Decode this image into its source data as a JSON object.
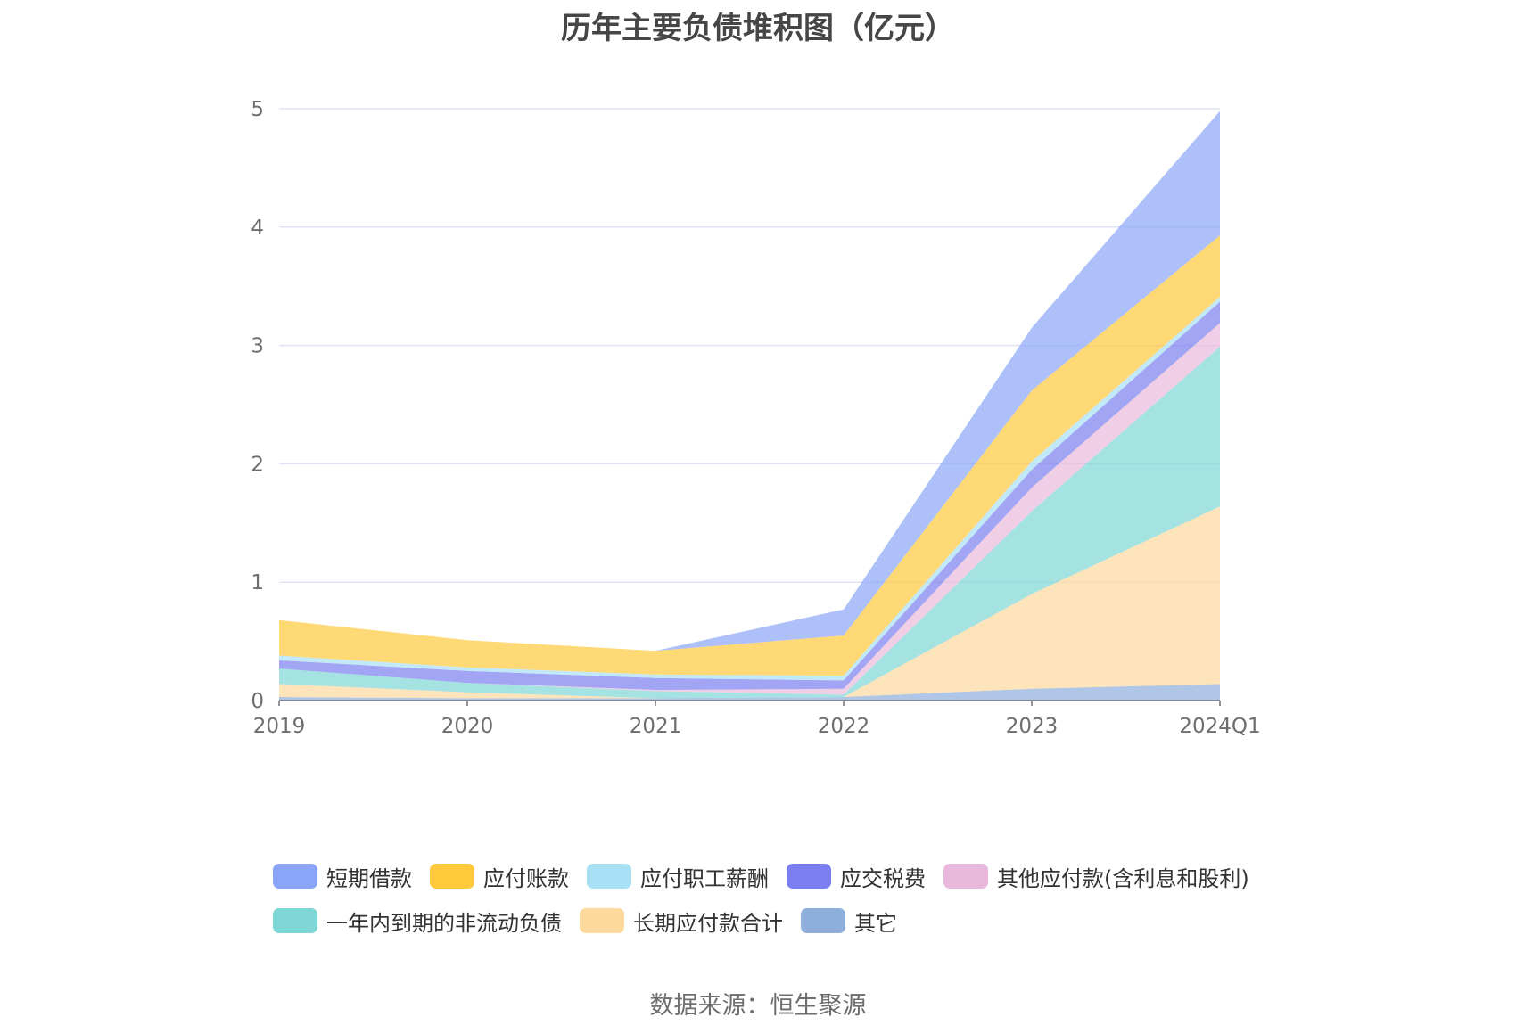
{
  "chart_data": {
    "type": "area",
    "stacked": true,
    "title": "历年主要负债堆积图（亿元）",
    "categories": [
      "2019",
      "2020",
      "2021",
      "2022",
      "2023",
      "2024Q1"
    ],
    "ylim": [
      0,
      5
    ],
    "yticks": [
      0,
      1,
      2,
      3,
      4,
      5
    ],
    "grid": true,
    "legend_position": "bottom",
    "series": [
      {
        "name": "其它",
        "color": "#8eaedb",
        "values": [
          0.03,
          0.02,
          0.02,
          0.03,
          0.1,
          0.14
        ]
      },
      {
        "name": "长期应付款合计",
        "color": "#fdd99c",
        "values": [
          0.11,
          0.05,
          0.0,
          0.0,
          0.8,
          1.5
        ]
      },
      {
        "name": "一年内到期的非流动负债",
        "color": "#7fd6d6",
        "values": [
          0.13,
          0.08,
          0.06,
          0.02,
          0.7,
          1.35
        ]
      },
      {
        "name": "其他应付款(含利息和股利)",
        "color": "#e8b9dc",
        "values": [
          0.0,
          0.0,
          0.01,
          0.05,
          0.2,
          0.2
        ]
      },
      {
        "name": "应交税费",
        "color": "#7b7ef0",
        "values": [
          0.07,
          0.1,
          0.1,
          0.07,
          0.15,
          0.18
        ]
      },
      {
        "name": "应付职工薪酬",
        "color": "#a8e0f5",
        "values": [
          0.04,
          0.03,
          0.03,
          0.04,
          0.07,
          0.04
        ]
      },
      {
        "name": "应付账款",
        "color": "#ffc93c",
        "values": [
          0.3,
          0.23,
          0.2,
          0.34,
          0.6,
          0.52
        ]
      },
      {
        "name": "短期借款",
        "color": "#8aa5f8",
        "values": [
          0.0,
          0.0,
          0.0,
          0.22,
          0.53,
          1.05
        ]
      }
    ]
  },
  "legend": {
    "row1": [
      {
        "label": "短期借款",
        "color": "#8aa5f8"
      },
      {
        "label": "应付账款",
        "color": "#ffc93c"
      },
      {
        "label": "应付职工薪酬",
        "color": "#a8e0f5"
      },
      {
        "label": "应交税费",
        "color": "#7b7ef0"
      },
      {
        "label": "其他应付款(含利息和股利)",
        "color": "#e8b9dc"
      }
    ],
    "row2": [
      {
        "label": "一年内到期的非流动负债",
        "color": "#7fd6d6"
      },
      {
        "label": "长期应付款合计",
        "color": "#fdd99c"
      },
      {
        "label": "其它",
        "color": "#8eaedb"
      }
    ]
  },
  "source": "数据来源：恒生聚源"
}
